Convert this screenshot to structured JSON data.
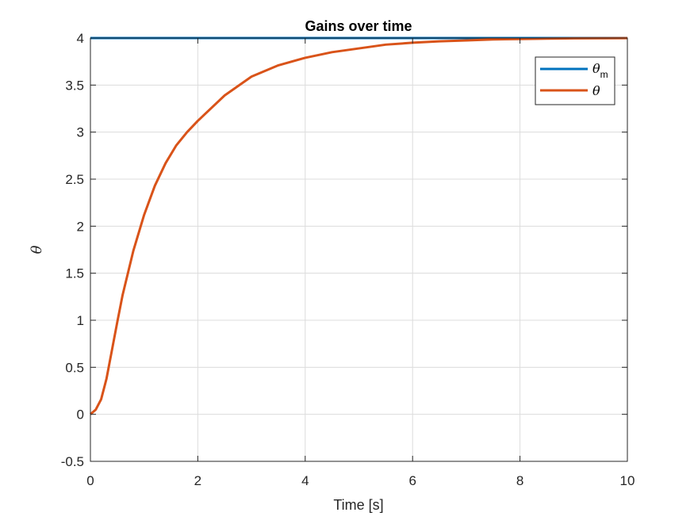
{
  "chart_data": {
    "type": "line",
    "title": "Gains over time",
    "xlabel": "Time [s]",
    "ylabel": "θ",
    "xlim": [
      0,
      10
    ],
    "ylim": [
      -0.5,
      4
    ],
    "xticks": [
      "0",
      "2",
      "4",
      "6",
      "8",
      "10"
    ],
    "yticks": [
      "-0.5",
      "0",
      "0.5",
      "1",
      "1.5",
      "2",
      "2.5",
      "3",
      "3.5",
      "4"
    ],
    "grid": true,
    "legend_position": "top-right",
    "series": [
      {
        "name": "θ",
        "name_subscript": "m",
        "color": "#0072BD",
        "x": [
          0,
          10
        ],
        "y": [
          4,
          4
        ]
      },
      {
        "name": "θ",
        "name_subscript": "",
        "color": "#D95319",
        "x": [
          0,
          0.1,
          0.2,
          0.3,
          0.4,
          0.5,
          0.6,
          0.8,
          1.0,
          1.2,
          1.4,
          1.6,
          1.8,
          2.0,
          2.5,
          3.0,
          3.5,
          4.0,
          4.5,
          5.0,
          5.5,
          6.0,
          6.5,
          7.0,
          7.5,
          8.0,
          8.5,
          9.0,
          9.5,
          10.0
        ],
        "y": [
          0,
          0.05,
          0.16,
          0.38,
          0.68,
          0.98,
          1.27,
          1.74,
          2.12,
          2.43,
          2.67,
          2.86,
          3.0,
          3.12,
          3.39,
          3.59,
          3.71,
          3.79,
          3.85,
          3.89,
          3.93,
          3.95,
          3.965,
          3.975,
          3.985,
          3.99,
          3.994,
          3.997,
          3.998,
          3.999
        ]
      }
    ]
  }
}
